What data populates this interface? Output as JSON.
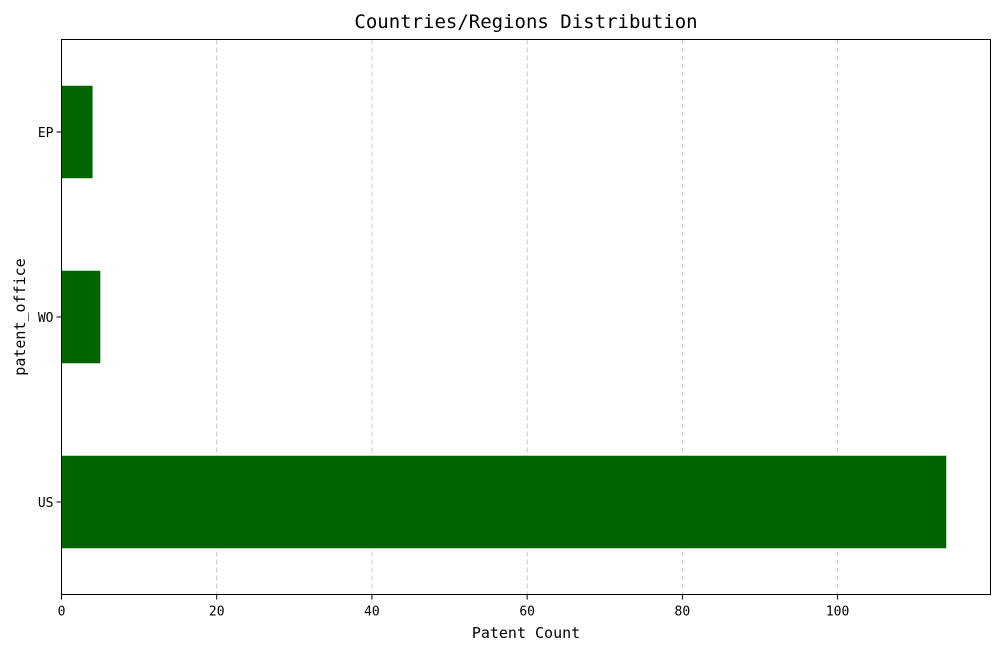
{
  "chart_data": {
    "type": "bar",
    "orientation": "horizontal",
    "title": "Countries/Regions Distribution",
    "xlabel": "Patent Count",
    "ylabel": "patent_office",
    "categories": [
      "US",
      "WO",
      "EP"
    ],
    "values": [
      114,
      5,
      4
    ],
    "xlim": [
      0,
      119.7
    ],
    "xticks": [
      0,
      20,
      40,
      60,
      80,
      100
    ],
    "grid": "x-axis dashed",
    "legend": "none",
    "bar_color": "#006400"
  }
}
